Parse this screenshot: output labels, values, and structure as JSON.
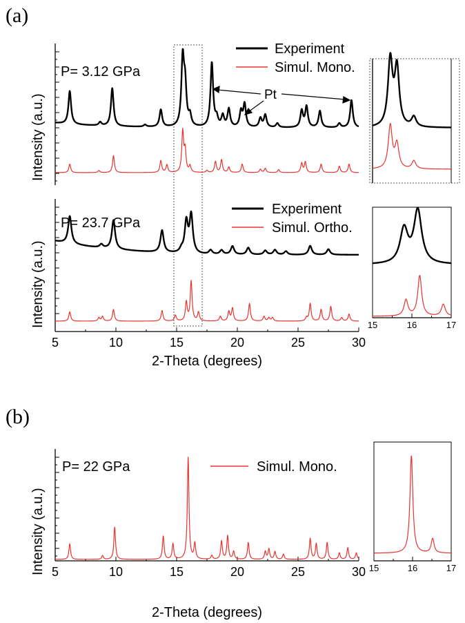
{
  "panel_a": {
    "label": "(a)",
    "top": {
      "pressure": "P= 3.12 GPa",
      "legend": [
        {
          "label": "Experiment",
          "color": "#000000"
        },
        {
          "label": "Simul. Mono.",
          "color": "#e8322e"
        }
      ],
      "annotation": "Pt"
    },
    "bottom": {
      "pressure": "P= 23.7 GPa",
      "legend": [
        {
          "label": "Experiment",
          "color": "#000000"
        },
        {
          "label": "Simul. Ortho.",
          "color": "#e8322e"
        }
      ]
    },
    "ylabel_top": "Intensity (a.u.)",
    "ylabel_bottom": "Intensity (a.u.)",
    "xlabel": "2-Theta (degrees)"
  },
  "panel_b": {
    "label": "(b)",
    "pressure": "P= 22 GPa",
    "legend": [
      {
        "label": "Simul. Mono.",
        "color": "#e8322e"
      }
    ],
    "ylabel": "Intensity (a.u.)",
    "xlabel": "2-Theta (degrees)"
  },
  "chart_data": [
    {
      "type": "line",
      "panel": "a-top",
      "xlim": [
        5,
        30
      ],
      "xticks": [
        5,
        10,
        15,
        20,
        25,
        30
      ],
      "series": [
        {
          "name": "Experiment",
          "color": "#000000",
          "peaks": [
            [
              6.2,
              0.48
            ],
            [
              8.7,
              0.05
            ],
            [
              9.7,
              0.55
            ],
            [
              12.4,
              0.03
            ],
            [
              13.7,
              0.25
            ],
            [
              15.5,
              0.96
            ],
            [
              15.7,
              0.55
            ],
            [
              16.1,
              0.15
            ],
            [
              17.9,
              0.93
            ],
            [
              18.3,
              0.12
            ],
            [
              18.8,
              0.16
            ],
            [
              19.3,
              0.26
            ],
            [
              20.3,
              0.22
            ],
            [
              20.6,
              0.33
            ],
            [
              21.9,
              0.13
            ],
            [
              22.3,
              0.18
            ],
            [
              23.3,
              0.06
            ],
            [
              25.3,
              0.24
            ],
            [
              25.7,
              0.3
            ],
            [
              26.8,
              0.24
            ],
            [
              28.4,
              0.06
            ],
            [
              29.4,
              0.4
            ]
          ]
        },
        {
          "name": "Simul. Mono.",
          "color": "#e8322e",
          "peaks": [
            [
              6.2,
              0.2
            ],
            [
              8.6,
              0.05
            ],
            [
              9.8,
              0.4
            ],
            [
              13.7,
              0.28
            ],
            [
              14.2,
              0.18
            ],
            [
              15.5,
              0.95
            ],
            [
              15.7,
              0.5
            ],
            [
              16.1,
              0.15
            ],
            [
              17.5,
              0.05
            ],
            [
              18.2,
              0.26
            ],
            [
              18.7,
              0.3
            ],
            [
              19.3,
              0.13
            ],
            [
              20.4,
              0.2
            ],
            [
              21.9,
              0.08
            ],
            [
              22.3,
              0.1
            ],
            [
              23.4,
              0.07
            ],
            [
              25.3,
              0.22
            ],
            [
              25.6,
              0.25
            ],
            [
              26.9,
              0.2
            ],
            [
              28.4,
              0.15
            ],
            [
              29.2,
              0.2
            ]
          ]
        }
      ]
    },
    {
      "type": "line",
      "panel": "a-bottom",
      "xlim": [
        5,
        30
      ],
      "xticks": [
        5,
        10,
        15,
        20,
        25,
        30
      ],
      "series": [
        {
          "name": "Experiment",
          "color": "#000000",
          "peaks": [
            [
              6.2,
              0.4
            ],
            [
              8.8,
              0.05
            ],
            [
              9.8,
              0.42
            ],
            [
              13.8,
              0.32
            ],
            [
              15.4,
              0.05
            ],
            [
              15.8,
              0.45
            ],
            [
              16.2,
              0.55
            ],
            [
              17.8,
              0.06
            ],
            [
              18.7,
              0.06
            ],
            [
              19.6,
              0.12
            ],
            [
              20.9,
              0.1
            ],
            [
              22.3,
              0.06
            ],
            [
              23.1,
              0.07
            ],
            [
              24.0,
              0.05
            ],
            [
              26.0,
              0.13
            ],
            [
              27.5,
              0.08
            ]
          ]
        },
        {
          "name": "Simul. Ortho.",
          "color": "#e8322e",
          "peaks": [
            [
              6.2,
              0.16
            ],
            [
              8.6,
              0.06
            ],
            [
              8.9,
              0.08
            ],
            [
              9.8,
              0.2
            ],
            [
              13.8,
              0.18
            ],
            [
              14.9,
              0.1
            ],
            [
              15.8,
              0.32
            ],
            [
              16.2,
              0.68
            ],
            [
              16.8,
              0.15
            ],
            [
              18.6,
              0.08
            ],
            [
              19.3,
              0.16
            ],
            [
              19.6,
              0.22
            ],
            [
              21.0,
              0.3
            ],
            [
              22.2,
              0.08
            ],
            [
              22.6,
              0.06
            ],
            [
              22.9,
              0.06
            ],
            [
              25.7,
              0.06
            ],
            [
              26.0,
              0.3
            ],
            [
              26.9,
              0.2
            ],
            [
              27.7,
              0.25
            ],
            [
              28.6,
              0.06
            ],
            [
              29.2,
              0.12
            ]
          ]
        }
      ]
    },
    {
      "type": "line",
      "panel": "a-top-inset",
      "xlim": [
        15,
        17
      ],
      "series": [
        {
          "name": "Experiment",
          "color": "#000000",
          "peaks": [
            [
              15.45,
              0.8
            ],
            [
              15.62,
              0.7
            ],
            [
              16.05,
              0.12
            ]
          ]
        },
        {
          "name": "Simul. Mono.",
          "color": "#e8322e",
          "peaks": [
            [
              15.45,
              0.8
            ],
            [
              15.62,
              0.45
            ],
            [
              16.05,
              0.15
            ]
          ]
        }
      ]
    },
    {
      "type": "line",
      "panel": "a-bottom-inset",
      "xlim": [
        15,
        17
      ],
      "xticks": [
        15,
        16,
        17
      ],
      "series": [
        {
          "name": "Experiment",
          "color": "#000000",
          "peaks": [
            [
              15.8,
              0.45
            ],
            [
              16.15,
              0.7
            ]
          ]
        },
        {
          "name": "Simul. Ortho.",
          "color": "#e8322e",
          "peaks": [
            [
              15.85,
              0.3
            ],
            [
              16.2,
              0.75
            ],
            [
              16.8,
              0.22
            ]
          ]
        }
      ]
    },
    {
      "type": "line",
      "panel": "b",
      "xlim": [
        5,
        30
      ],
      "xticks": [
        5,
        10,
        15,
        20,
        25,
        30
      ],
      "series": [
        {
          "name": "Simul. Mono.",
          "color": "#e8322e",
          "peaks": [
            [
              6.2,
              0.12
            ],
            [
              8.9,
              0.03
            ],
            [
              9.9,
              0.25
            ],
            [
              13.9,
              0.18
            ],
            [
              14.7,
              0.12
            ],
            [
              15.95,
              0.78
            ],
            [
              16.5,
              0.12
            ],
            [
              17.9,
              0.03
            ],
            [
              18.7,
              0.14
            ],
            [
              19.2,
              0.18
            ],
            [
              19.7,
              0.06
            ],
            [
              20.9,
              0.13
            ],
            [
              22.3,
              0.06
            ],
            [
              22.6,
              0.08
            ],
            [
              23.1,
              0.06
            ],
            [
              23.8,
              0.04
            ],
            [
              26.0,
              0.16
            ],
            [
              26.5,
              0.12
            ],
            [
              27.4,
              0.13
            ],
            [
              28.4,
              0.05
            ],
            [
              29.1,
              0.09
            ],
            [
              29.8,
              0.05
            ]
          ]
        }
      ]
    },
    {
      "type": "line",
      "panel": "b-inset",
      "xlim": [
        15,
        17
      ],
      "xticks": [
        15,
        16,
        17
      ],
      "series": [
        {
          "name": "Simul. Mono.",
          "color": "#e8322e",
          "peaks": [
            [
              15.97,
              0.88
            ],
            [
              16.52,
              0.13
            ]
          ]
        }
      ]
    }
  ]
}
